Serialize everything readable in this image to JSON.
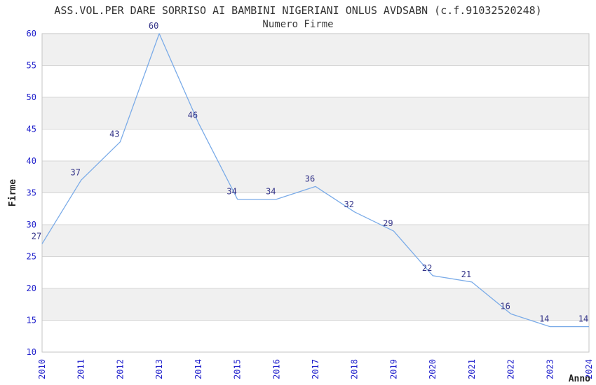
{
  "chart_data": {
    "type": "line",
    "title": "ASS.VOL.PER DARE SORRISO AI BAMBINI NIGERIANI ONLUS AVDSABN (c.f.91032520248)",
    "subtitle": "Numero Firme",
    "xlabel": "Anno",
    "ylabel": "Firme",
    "categories": [
      "2010",
      "2011",
      "2012",
      "2013",
      "2014",
      "2015",
      "2016",
      "2017",
      "2018",
      "2019",
      "2020",
      "2021",
      "2022",
      "2023",
      "2024"
    ],
    "values": [
      27,
      37,
      43,
      60,
      46,
      34,
      34,
      36,
      32,
      29,
      22,
      21,
      16,
      14,
      14
    ],
    "ylim": [
      10,
      60
    ],
    "ytick_step": 5,
    "grid": "horizontal-only",
    "bands": "alternating-horizontal",
    "legend_position": "none",
    "markers": "none",
    "colors": {
      "line": "#7aabe8",
      "tick_label": "#2222cc",
      "data_label": "#333388",
      "title_text": "#333333",
      "axis_title_text": "#222222",
      "band_fill": "#f0f0f0",
      "gridline": "#d6d6d6",
      "plot_border": "#c6c6c6",
      "background": "#ffffff"
    }
  }
}
